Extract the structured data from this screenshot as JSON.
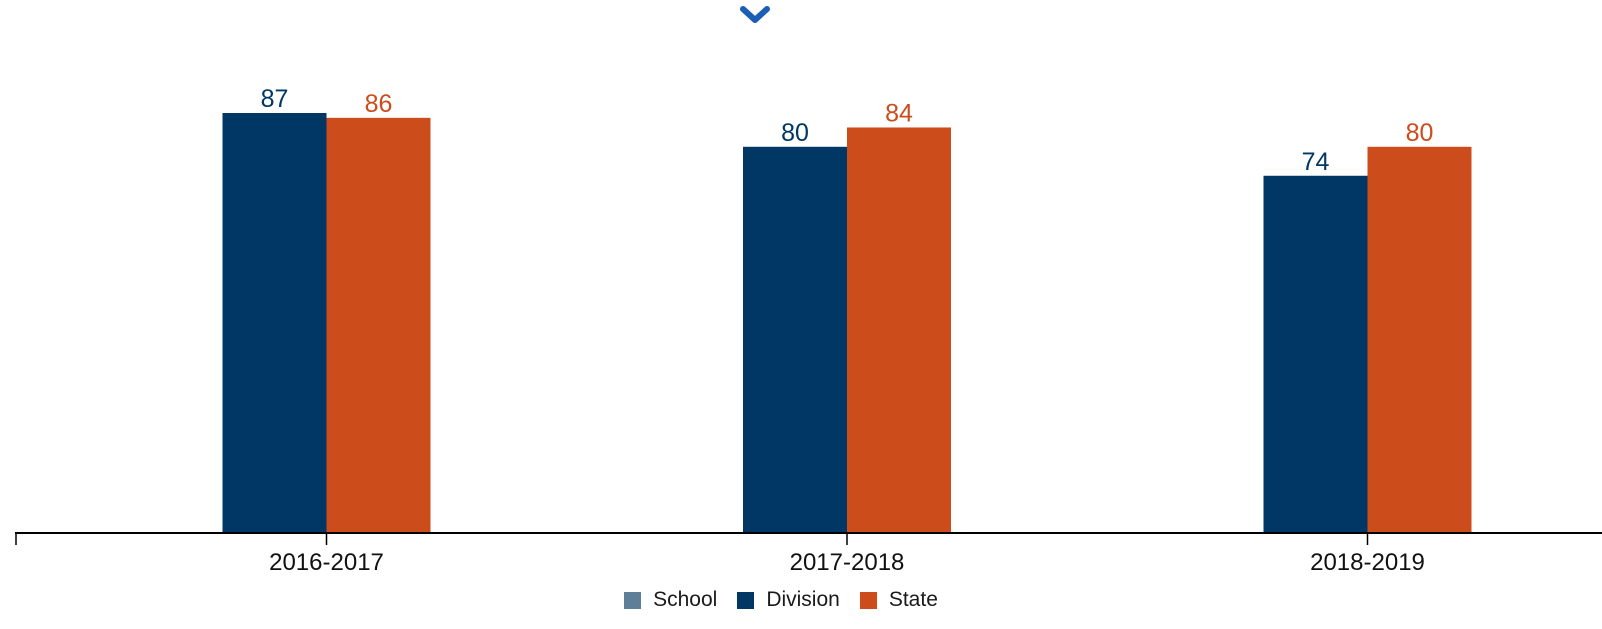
{
  "toggle": {
    "icon": "chevron-down-icon",
    "color": "#1a5fb4"
  },
  "colors": {
    "school": "#5f7f99",
    "division": "#003764",
    "state": "#cc4c1b",
    "axis": "#000000"
  },
  "chart_data": {
    "type": "bar",
    "categories": [
      "2016-2017",
      "2017-2018",
      "2018-2019"
    ],
    "series": [
      {
        "name": "School",
        "values": [
          null,
          null,
          null
        ],
        "color": "#5f7f99"
      },
      {
        "name": "Division",
        "values": [
          87,
          80,
          74
        ],
        "color": "#003764"
      },
      {
        "name": "State",
        "values": [
          86,
          84,
          80
        ],
        "color": "#cc4c1b"
      }
    ],
    "ylim": [
      0,
      90
    ],
    "grid": false,
    "legend_position": "bottom-center",
    "data_labels": true
  }
}
